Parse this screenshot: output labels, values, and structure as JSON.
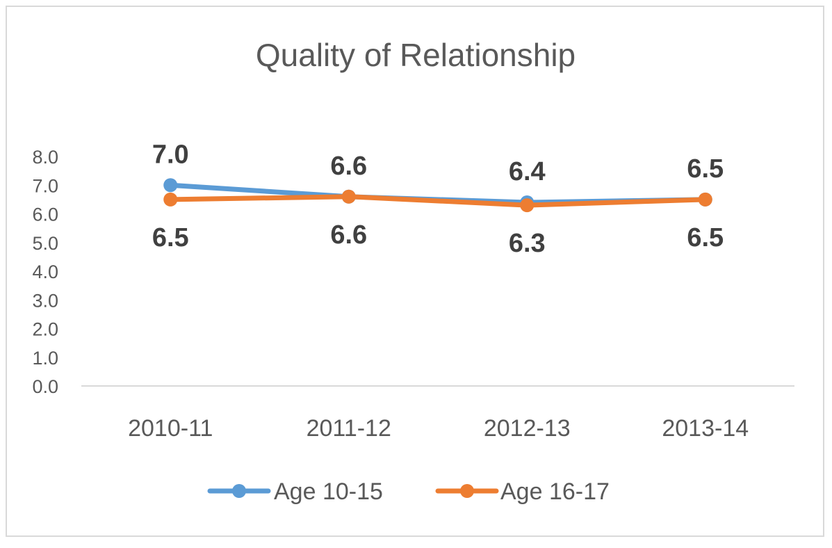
{
  "chart_data": {
    "type": "line",
    "title": "Quality of Relationship",
    "xlabel": "",
    "ylabel": "",
    "categories": [
      "2010-11",
      "2011-12",
      "2012-13",
      "2013-14"
    ],
    "ylim": [
      0,
      8
    ],
    "yticks": [
      "0.0",
      "1.0",
      "2.0",
      "3.0",
      "4.0",
      "5.0",
      "6.0",
      "7.0",
      "8.0"
    ],
    "grid": false,
    "legend_position": "bottom",
    "series": [
      {
        "name": "Age 10-15",
        "values": [
          7.0,
          6.6,
          6.4,
          6.5
        ],
        "labels": [
          "7.0",
          "6.6",
          "6.4",
          "6.5"
        ],
        "color": "#5b9bd5"
      },
      {
        "name": "Age 16-17",
        "values": [
          6.5,
          6.6,
          6.3,
          6.5
        ],
        "labels": [
          "6.5",
          "6.6",
          "6.3",
          "6.5"
        ],
        "color": "#ed7d31"
      }
    ]
  }
}
